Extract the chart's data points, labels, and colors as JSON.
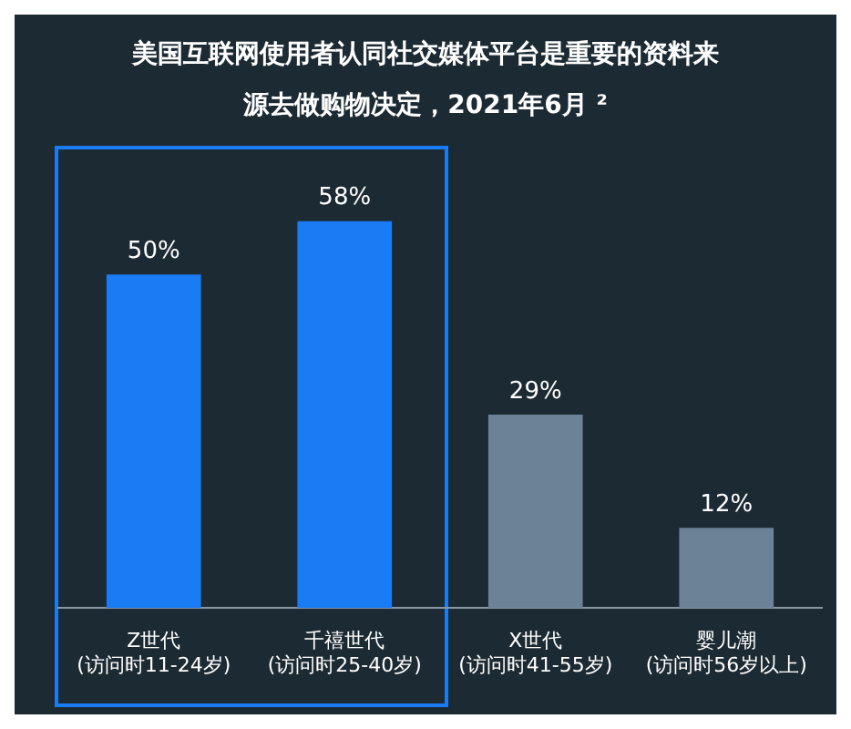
{
  "chart_data": {
    "type": "bar",
    "title": "美国互联网使用者认同社交媒体平台是重要的资料来源去做购物决定，2021年6月 ²",
    "categories": [
      "Z世代\n(访问时11-24岁)",
      "千禧世代\n(访问时25-40岁)",
      "X世代\n(访问时41-55岁)",
      "婴儿潮\n(访问时56岁以上)"
    ],
    "values": [
      50,
      58,
      29,
      12
    ],
    "colors": [
      "#1a7cf5",
      "#1a7cf5",
      "#6c8296",
      "#6c8296"
    ],
    "value_labels": [
      "50%",
      "58%",
      "29%",
      "12%"
    ],
    "grid": false,
    "legend": false
  }
}
